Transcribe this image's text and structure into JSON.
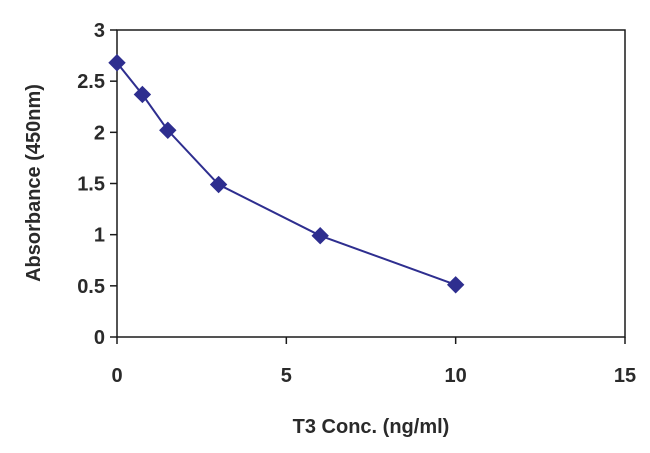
{
  "chart_data": {
    "type": "scatter",
    "title": "",
    "xlabel": "T3 Conc. (ng/ml)",
    "ylabel": "Absorbance (450nm)",
    "xlim": [
      0,
      15
    ],
    "ylim": [
      0,
      3
    ],
    "xticks": [
      "0",
      "5",
      "10",
      "15"
    ],
    "yticks": [
      "0",
      "0.5",
      "1",
      "1.5",
      "2",
      "2.5",
      "3"
    ],
    "grid": false,
    "legend": "none",
    "series": [
      {
        "color": "#2e2e8f",
        "marker": "diamond",
        "connected": true,
        "points": [
          {
            "x": 0,
            "y": 2.68
          },
          {
            "x": 0.75,
            "y": 2.37
          },
          {
            "x": 1.5,
            "y": 2.02
          },
          {
            "x": 3,
            "y": 1.49
          },
          {
            "x": 6,
            "y": 0.99
          },
          {
            "x": 10,
            "y": 0.51
          }
        ]
      }
    ]
  }
}
